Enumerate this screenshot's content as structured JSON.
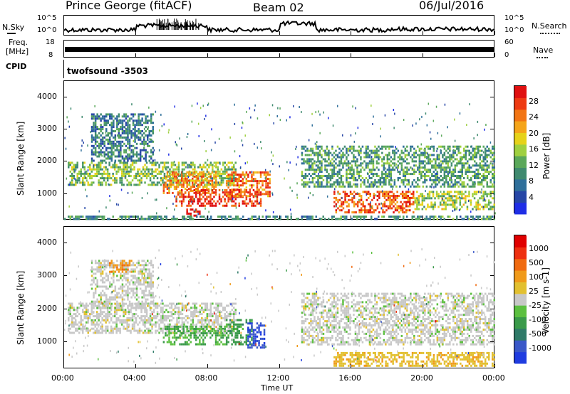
{
  "header": {
    "title": "Prince George (fitACF)",
    "beam": "Beam 02",
    "date": "06/Jul/2016"
  },
  "nsky_panel": {
    "left_label": "N.Sky",
    "right_label": "N.Search",
    "left_ticks": [
      "10^5",
      "10^0"
    ],
    "right_ticks": [
      "10^5",
      "10^0"
    ]
  },
  "freq_panel": {
    "left_label_1": "Freq.",
    "left_label_2": "[MHz]",
    "right_label": "Nave",
    "left_ticks": [
      "18",
      "8"
    ],
    "right_ticks": [
      "60",
      "0"
    ]
  },
  "cpid_panel": {
    "left_label": "CPID",
    "program": "twofsound -3503"
  },
  "colors": {
    "power_scale": [
      "#1f2ee6",
      "#2646a6",
      "#2f6f9a",
      "#3f8a6f",
      "#5aa85a",
      "#9fd040",
      "#e6d21a",
      "#f5a51a",
      "#f27514",
      "#ee3a12",
      "#e01010"
    ],
    "velocity_scale": [
      "#1f3ce0",
      "#3a58c8",
      "#2f7a68",
      "#3a9a4a",
      "#5cc040",
      "#c8c8c8",
      "#e2c030",
      "#f09a1a",
      "#f06a10",
      "#ee3010",
      "#e00000"
    ]
  },
  "chart_data": [
    {
      "type": "heatmap",
      "title": "",
      "xlabel": "",
      "ylabel": "Slant Range [km]",
      "xlim": [
        "00:00",
        "00:00"
      ],
      "ylim": [
        180,
        4500
      ],
      "yticks": [
        "1000",
        "2000",
        "3000",
        "4000"
      ],
      "xticks": [
        "00:00",
        "04:00",
        "08:00",
        "12:00",
        "16:00",
        "20:00",
        "00:00"
      ],
      "colorbar_label": "Power [dB]",
      "colorbar_ticks": [
        "28",
        "24",
        "20",
        "16",
        "12",
        "8",
        "4"
      ],
      "regions": [
        {
          "t0": 0.2,
          "t1": 9.6,
          "r0": 1250,
          "r1": 2000,
          "level": 0.45
        },
        {
          "t0": 1.5,
          "t1": 5.0,
          "r0": 2000,
          "r1": 3500,
          "level": 0.25
        },
        {
          "t0": 5.5,
          "t1": 8.5,
          "r0": 1000,
          "r1": 1700,
          "level": 0.75
        },
        {
          "t0": 6.2,
          "t1": 11.0,
          "r0": 600,
          "r1": 1150,
          "level": 0.95
        },
        {
          "t0": 6.8,
          "t1": 7.6,
          "r0": 300,
          "r1": 550,
          "level": 1.0
        },
        {
          "t0": 9.0,
          "t1": 11.5,
          "r0": 900,
          "r1": 1700,
          "level": 0.8
        },
        {
          "t0": 13.2,
          "t1": 24.0,
          "r0": 1200,
          "r1": 2500,
          "level": 0.35
        },
        {
          "t0": 15.0,
          "t1": 19.5,
          "r0": 400,
          "r1": 1100,
          "level": 0.85
        },
        {
          "t0": 19.5,
          "t1": 24.0,
          "r0": 500,
          "r1": 1100,
          "level": 0.5
        },
        {
          "t0": 0.0,
          "t1": 24.0,
          "r0": 190,
          "r1": 330,
          "level": 0.3
        }
      ]
    },
    {
      "type": "heatmap",
      "title": "",
      "xlabel": "Time UT",
      "ylabel": "Slant Range [km]",
      "xlim": [
        "00:00",
        "00:00"
      ],
      "ylim": [
        180,
        4500
      ],
      "yticks": [
        "1000",
        "2000",
        "3000",
        "4000"
      ],
      "xticks": [
        "00:00",
        "04:00",
        "08:00",
        "12:00",
        "16:00",
        "20:00",
        "00:00"
      ],
      "colorbar_label": "Velocity [m s-1]",
      "colorbar_ticks": [
        "1000",
        "500",
        "100",
        "25",
        "-25",
        "-100",
        "-500",
        "-1000"
      ],
      "regions": [
        {
          "t0": 0.2,
          "t1": 9.6,
          "r0": 1250,
          "r1": 2200,
          "level": 0.5
        },
        {
          "t0": 1.5,
          "t1": 5.0,
          "r0": 2000,
          "r1": 3500,
          "level": 0.5
        },
        {
          "t0": 5.5,
          "t1": 9.0,
          "r0": 900,
          "r1": 1500,
          "level": 0.35
        },
        {
          "t0": 9.0,
          "t1": 10.5,
          "r0": 900,
          "r1": 1700,
          "level": 0.3
        },
        {
          "t0": 10.2,
          "t1": 11.2,
          "r0": 800,
          "r1": 1600,
          "level": 0.08
        },
        {
          "t0": 13.2,
          "t1": 24.0,
          "r0": 900,
          "r1": 2500,
          "level": 0.5
        },
        {
          "t0": 15.0,
          "t1": 24.0,
          "r0": 250,
          "r1": 700,
          "level": 0.62
        },
        {
          "t0": 2.5,
          "t1": 3.8,
          "r0": 3100,
          "r1": 3500,
          "level": 0.72
        }
      ]
    }
  ]
}
